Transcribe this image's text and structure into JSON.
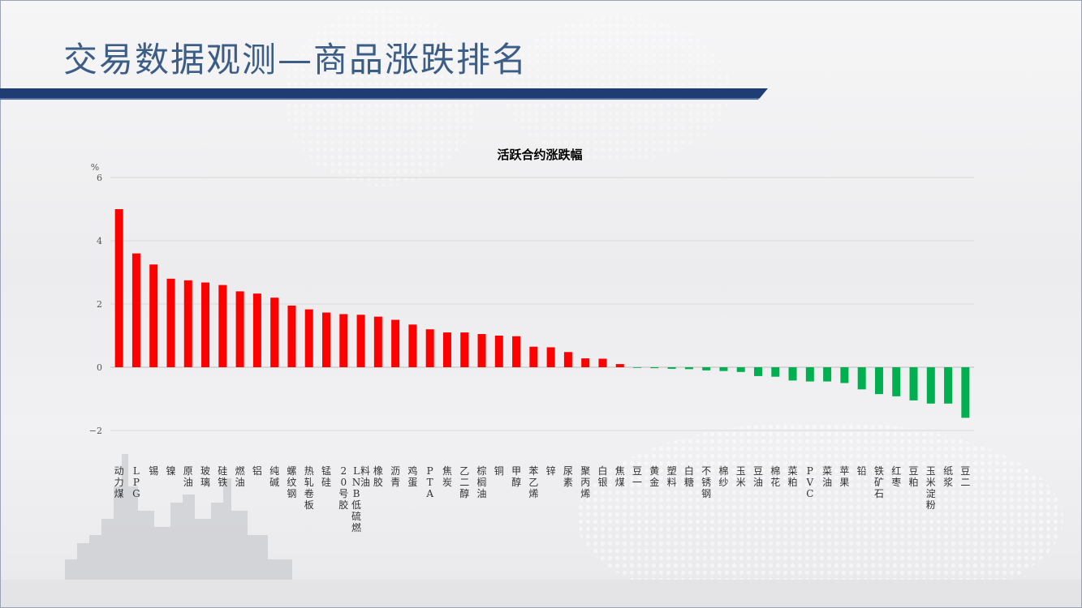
{
  "page_title": "交易数据观测—商品涨跌排名",
  "colors": {
    "up": "#ff0000",
    "down": "#00b050",
    "accent": "#1f3c73"
  },
  "chart_data": {
    "type": "bar",
    "title": "活跃合约涨跌幅",
    "ylabel": "%",
    "ylim": [
      -2,
      6
    ],
    "yticks": [
      "6",
      "4",
      "2",
      "0",
      "−2"
    ],
    "grid": true,
    "categories": [
      "动力煤",
      "LPG",
      "锡",
      "镍",
      "原油",
      "玻璃",
      "硅铁",
      "燃油",
      "铝",
      "纯碱",
      "螺纹钢",
      "热轧卷板",
      "锰硅",
      "20号胶",
      "LNB低硫燃料油",
      "橡胶",
      "沥青",
      "鸡蛋",
      "PTA",
      "焦炭",
      "乙二醇",
      "棕榈油",
      "铜",
      "甲醇",
      "苯乙烯",
      "锌",
      "尿素",
      "聚丙烯",
      "白银",
      "焦煤",
      "豆一",
      "黄金",
      "塑料",
      "白糖",
      "不锈钢",
      "棉纱",
      "玉米",
      "豆油",
      "棉花",
      "菜粕",
      "PVC",
      "菜油",
      "苹果",
      "铅",
      "铁矿石",
      "红枣",
      "豆粕",
      "玉米淀粉",
      "纸浆",
      "豆二"
    ],
    "values": [
      5.0,
      3.6,
      3.25,
      2.8,
      2.75,
      2.68,
      2.6,
      2.4,
      2.33,
      2.2,
      1.95,
      1.83,
      1.73,
      1.68,
      1.66,
      1.6,
      1.5,
      1.35,
      1.2,
      1.1,
      1.1,
      1.05,
      1.0,
      0.98,
      0.65,
      0.63,
      0.48,
      0.28,
      0.27,
      0.1,
      -0.02,
      -0.03,
      -0.05,
      -0.06,
      -0.1,
      -0.12,
      -0.15,
      -0.28,
      -0.3,
      -0.42,
      -0.45,
      -0.45,
      -0.5,
      -0.7,
      -0.85,
      -0.92,
      -1.05,
      -1.15,
      -1.15,
      -1.6
    ]
  }
}
